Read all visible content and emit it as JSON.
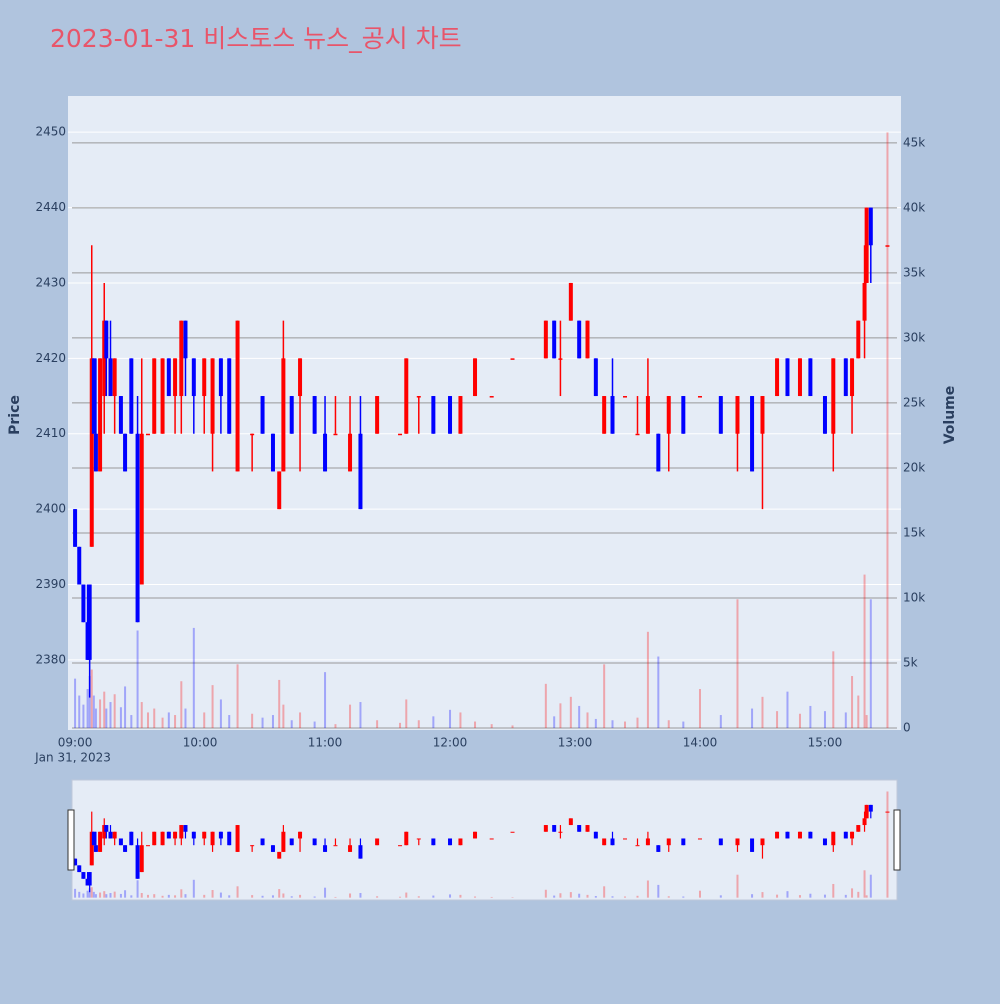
{
  "chart_data": {
    "type": "candlestick",
    "title": "2023-01-31 비스토스 뉴스_공시 차트",
    "x_date_label": "Jan 31, 2023",
    "y_title": "Price",
    "y2_title": "Volume",
    "increasing_color": "#ff0000",
    "decreasing_color": "#0000ff",
    "x": [
      "09:00",
      "09:02",
      "09:04",
      "09:06",
      "09:07",
      "09:08",
      "09:09",
      "09:10",
      "09:12",
      "09:14",
      "09:15",
      "09:17",
      "09:19",
      "09:22",
      "09:24",
      "09:27",
      "09:30",
      "09:32",
      "09:35",
      "09:38",
      "09:42",
      "09:45",
      "09:48",
      "09:51",
      "09:53",
      "09:57",
      "10:02",
      "10:06",
      "10:10",
      "10:14",
      "10:18",
      "10:25",
      "10:30",
      "10:35",
      "10:38",
      "10:40",
      "10:44",
      "10:48",
      "10:55",
      "11:00",
      "11:05",
      "11:12",
      "11:17",
      "11:25",
      "11:36",
      "11:39",
      "11:45",
      "11:52",
      "12:00",
      "12:05",
      "12:12",
      "12:20",
      "12:30",
      "12:46",
      "12:50",
      "12:53",
      "12:58",
      "13:02",
      "13:06",
      "13:10",
      "13:14",
      "13:18",
      "13:24",
      "13:30",
      "13:35",
      "13:40",
      "13:45",
      "13:52",
      "14:00",
      "14:10",
      "14:18",
      "14:25",
      "14:30",
      "14:37",
      "14:42",
      "14:48",
      "14:53",
      "15:00",
      "15:04",
      "15:10",
      "15:13",
      "15:16",
      "15:19",
      "15:20",
      "15:22",
      "15:30"
    ],
    "open": [
      2400,
      2395,
      2390,
      2385,
      2390,
      2395,
      2420,
      2410,
      2405,
      2415,
      2425,
      2420,
      2415,
      2415,
      2410,
      2420,
      2410,
      2390,
      2410,
      2410,
      2410,
      2420,
      2415,
      2415,
      2425,
      2420,
      2415,
      2410,
      2420,
      2420,
      2405,
      2410,
      2415,
      2410,
      2400,
      2405,
      2415,
      2415,
      2415,
      2410,
      2410,
      2405,
      2410,
      2410,
      2410,
      2410,
      2415,
      2415,
      2415,
      2410,
      2415,
      2415,
      2420,
      2420,
      2425,
      2420,
      2425,
      2425,
      2420,
      2420,
      2410,
      2415,
      2415,
      2410,
      2410,
      2410,
      2410,
      2415,
      2415,
      2415,
      2410,
      2415,
      2410,
      2415,
      2420,
      2415,
      2420,
      2415,
      2410,
      2420,
      2415,
      2420,
      2425,
      2430,
      2440,
      2435
    ],
    "high": [
      2400,
      2395,
      2390,
      2390,
      2390,
      2435,
      2420,
      2420,
      2420,
      2430,
      2425,
      2425,
      2420,
      2415,
      2410,
      2420,
      2415,
      2420,
      2410,
      2420,
      2420,
      2420,
      2420,
      2425,
      2425,
      2420,
      2420,
      2420,
      2420,
      2420,
      2425,
      2410,
      2415,
      2410,
      2405,
      2425,
      2415,
      2420,
      2415,
      2415,
      2415,
      2415,
      2415,
      2415,
      2410,
      2420,
      2415,
      2415,
      2415,
      2415,
      2420,
      2415,
      2420,
      2425,
      2425,
      2425,
      2430,
      2425,
      2425,
      2420,
      2415,
      2420,
      2415,
      2415,
      2420,
      2410,
      2415,
      2415,
      2415,
      2415,
      2415,
      2415,
      2415,
      2420,
      2420,
      2420,
      2420,
      2415,
      2420,
      2420,
      2420,
      2425,
      2435,
      2440,
      2440,
      2435
    ],
    "low": [
      2395,
      2390,
      2385,
      2380,
      2375,
      2395,
      2410,
      2405,
      2405,
      2410,
      2415,
      2415,
      2410,
      2410,
      2405,
      2410,
      2385,
      2390,
      2410,
      2410,
      2410,
      2415,
      2410,
      2410,
      2415,
      2410,
      2410,
      2405,
      2410,
      2410,
      2405,
      2405,
      2410,
      2405,
      2400,
      2405,
      2410,
      2405,
      2410,
      2405,
      2410,
      2405,
      2400,
      2410,
      2410,
      2410,
      2410,
      2410,
      2410,
      2410,
      2415,
      2415,
      2420,
      2420,
      2420,
      2415,
      2425,
      2420,
      2420,
      2415,
      2410,
      2410,
      2415,
      2410,
      2410,
      2405,
      2405,
      2410,
      2415,
      2410,
      2405,
      2405,
      2400,
      2415,
      2415,
      2415,
      2415,
      2410,
      2405,
      2415,
      2410,
      2420,
      2420,
      2430,
      2430,
      2435
    ],
    "close": [
      2395,
      2390,
      2385,
      2380,
      2380,
      2420,
      2410,
      2405,
      2420,
      2425,
      2420,
      2415,
      2420,
      2410,
      2405,
      2410,
      2385,
      2410,
      2410,
      2420,
      2420,
      2415,
      2420,
      2425,
      2420,
      2415,
      2420,
      2420,
      2415,
      2410,
      2425,
      2410,
      2410,
      2405,
      2405,
      2420,
      2410,
      2420,
      2410,
      2405,
      2410,
      2410,
      2400,
      2415,
      2410,
      2420,
      2415,
      2410,
      2410,
      2415,
      2420,
      2415,
      2420,
      2425,
      2420,
      2420,
      2430,
      2420,
      2425,
      2415,
      2415,
      2410,
      2415,
      2410,
      2415,
      2405,
      2415,
      2410,
      2415,
      2410,
      2415,
      2405,
      2415,
      2420,
      2415,
      2420,
      2415,
      2410,
      2420,
      2415,
      2420,
      2425,
      2430,
      2440,
      2435,
      2435
    ],
    "volume": [
      3800,
      2500,
      1800,
      3000,
      4000,
      4500,
      2500,
      1500,
      2200,
      2800,
      1500,
      2000,
      2600,
      1600,
      3200,
      1000,
      7500,
      2000,
      1200,
      1500,
      800,
      1200,
      1000,
      3600,
      1500,
      7700,
      1200,
      3300,
      2200,
      1000,
      4900,
      1100,
      800,
      1000,
      3700,
      1800,
      600,
      1200,
      500,
      4300,
      300,
      1800,
      2000,
      600,
      400,
      2200,
      600,
      900,
      1400,
      1200,
      500,
      300,
      200,
      3400,
      900,
      1900,
      2400,
      1700,
      1200,
      700,
      4900,
      600,
      500,
      800,
      7400,
      5500,
      600,
      500,
      3000,
      1000,
      9900,
      1500,
      2400,
      1300,
      2800,
      1100,
      1700,
      1300,
      5900,
      1200,
      4000,
      2500,
      11800,
      1000,
      9900,
      45800
    ],
    "xlim": [
      "08:56.6",
      "15:36.5"
    ],
    "xticks": [
      "09:00",
      "10:00",
      "11:00",
      "12:00",
      "13:00",
      "14:00",
      "15:00"
    ],
    "ylim": [
      2370.7,
      2454.8
    ],
    "yticks": [
      2380,
      2390,
      2400,
      2410,
      2420,
      2430,
      2440,
      2450
    ],
    "y2lim": [
      -150,
      48600
    ],
    "y2ticks": [
      0,
      {
        "value": 5000,
        "label": "5k"
      },
      {
        "value": 10000,
        "label": "10k"
      },
      {
        "value": 15000,
        "label": "15k"
      },
      {
        "value": 20000,
        "label": "20k"
      },
      {
        "value": 25000,
        "label": "25k"
      },
      {
        "value": 30000,
        "label": "30k"
      },
      {
        "value": 35000,
        "label": "35k"
      },
      {
        "value": 40000,
        "label": "40k"
      },
      {
        "value": 45000,
        "label": "45k"
      }
    ],
    "grid": true,
    "rangeslider": true
  }
}
